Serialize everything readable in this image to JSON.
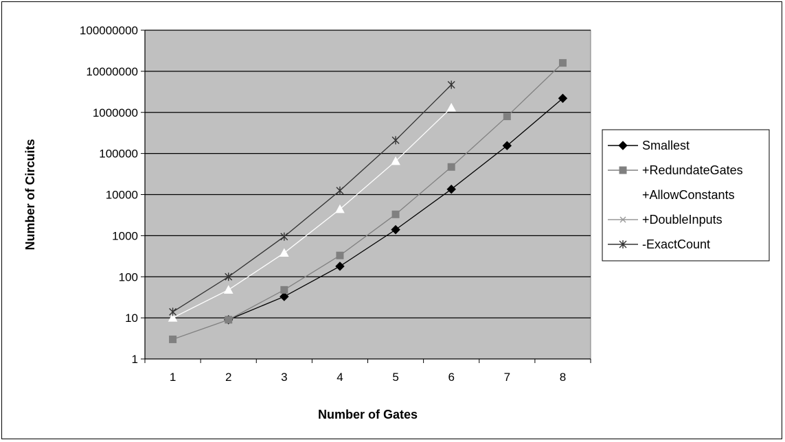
{
  "chart_data": {
    "type": "line",
    "title": "",
    "xlabel": "Number of Gates",
    "ylabel": "Number of Circuits",
    "yscale": "log",
    "ylim": [
      1,
      100000000
    ],
    "categories": [
      "1",
      "2",
      "3",
      "4",
      "5",
      "6",
      "7",
      "8"
    ],
    "ytick_labels": [
      "1",
      "10",
      "100",
      "1000",
      "10000",
      "100000",
      "1000000",
      "10000000",
      "100000000"
    ],
    "grid": "horizontal major lines",
    "plot_background": "#c0c0c0",
    "legend_position": "right",
    "series": [
      {
        "name": "Smallest",
        "marker": "diamond",
        "color": "#000000",
        "x": [
          2,
          3,
          4,
          5,
          6,
          7,
          8
        ],
        "values": [
          9,
          33,
          180,
          1400,
          13500,
          155000,
          2200000
        ]
      },
      {
        "name": "+RedundateGates",
        "marker": "square",
        "color": "#808080",
        "x": [
          1,
          2,
          3,
          4,
          5,
          6,
          7,
          8
        ],
        "values": [
          3,
          9,
          48,
          330,
          3300,
          47000,
          800000,
          16000000
        ]
      },
      {
        "name": "+AllowConstants",
        "marker": "triangle",
        "color": "#ffffff",
        "x": [
          1,
          2,
          3,
          4,
          5,
          6
        ],
        "values": [
          10,
          48,
          380,
          4400,
          65000,
          1300000
        ]
      },
      {
        "name": "+DoubleInputs",
        "marker": "x",
        "color": "#999999",
        "x": [
          1,
          2,
          3,
          4,
          5,
          6
        ],
        "values": [
          14,
          100,
          950,
          12500,
          210000,
          4700000
        ]
      },
      {
        "name": "-ExactCount",
        "marker": "star",
        "color": "#333333",
        "x": [
          1,
          2,
          3,
          4,
          5,
          6
        ],
        "values": [
          14,
          100,
          950,
          12500,
          210000,
          4700000
        ]
      }
    ]
  }
}
